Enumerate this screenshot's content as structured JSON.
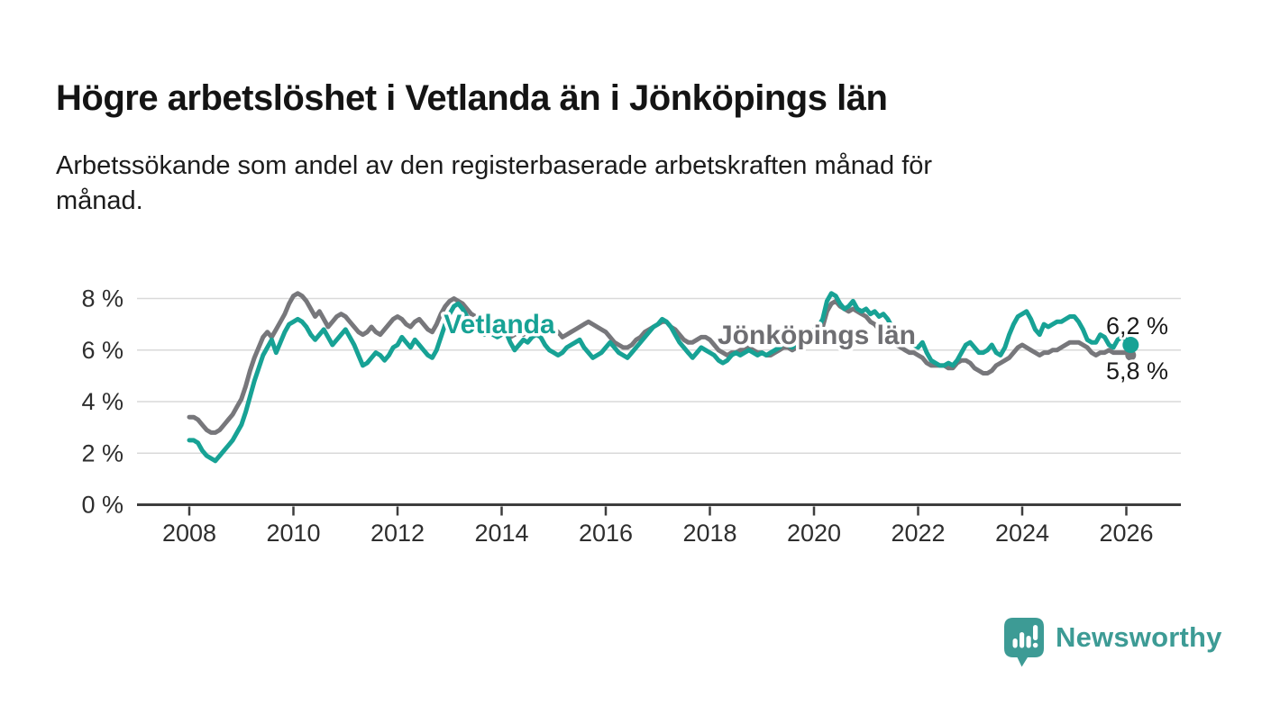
{
  "header": {
    "title": "Högre arbetslöshet i Vetlanda än i Jönköpings län",
    "subtitle_line1": "Arbetssökande som andel av den registerbaserade arbetskraften månad för",
    "subtitle_line2": "månad."
  },
  "chart_data": {
    "type": "line",
    "title": "Högre arbetslöshet i Vetlanda än i Jönköpings län",
    "unit": "%",
    "x_start": "2008-01",
    "x_end": "2026-02",
    "x_frequency": "monthly",
    "ylim": [
      0,
      8.8
    ],
    "grid": "horizontal",
    "legend_position": "inline-labels",
    "y_ticks": [
      {
        "value": 0,
        "label": "0 %"
      },
      {
        "value": 2,
        "label": "2 %"
      },
      {
        "value": 4,
        "label": "4 %"
      },
      {
        "value": 6,
        "label": "6 %"
      },
      {
        "value": 8,
        "label": "8 %"
      }
    ],
    "x_tick_years": [
      2008,
      2010,
      2012,
      2014,
      2016,
      2018,
      2020,
      2022,
      2024,
      2026
    ],
    "series": [
      {
        "name": "Vetlanda",
        "color": "#17a295",
        "label_color": "#17a295",
        "end_label": "6,2 %",
        "end_value": 6.2,
        "values": [
          2.5,
          2.5,
          2.4,
          2.1,
          1.9,
          1.8,
          1.7,
          1.9,
          2.1,
          2.3,
          2.5,
          2.8,
          3.1,
          3.6,
          4.2,
          4.8,
          5.3,
          5.8,
          6.1,
          6.4,
          5.9,
          6.3,
          6.7,
          7.0,
          7.1,
          7.2,
          7.1,
          6.9,
          6.6,
          6.4,
          6.6,
          6.8,
          6.5,
          6.2,
          6.4,
          6.6,
          6.8,
          6.5,
          6.2,
          5.8,
          5.4,
          5.5,
          5.7,
          5.9,
          5.8,
          5.6,
          5.8,
          6.1,
          6.2,
          6.5,
          6.3,
          6.1,
          6.4,
          6.2,
          6.0,
          5.8,
          5.7,
          6.0,
          6.5,
          7.0,
          7.4,
          7.7,
          7.8,
          7.6,
          7.3,
          7.1,
          6.9,
          6.7,
          6.6,
          6.8,
          6.6,
          6.5,
          6.6,
          6.7,
          6.3,
          6.0,
          6.2,
          6.4,
          6.3,
          6.5,
          6.6,
          6.5,
          6.2,
          6.0,
          5.9,
          5.8,
          5.9,
          6.1,
          6.2,
          6.3,
          6.4,
          6.1,
          5.9,
          5.7,
          5.8,
          5.9,
          6.1,
          6.3,
          6.1,
          5.9,
          5.8,
          5.7,
          5.9,
          6.1,
          6.3,
          6.5,
          6.7,
          6.9,
          7.0,
          7.2,
          7.1,
          6.9,
          6.6,
          6.3,
          6.1,
          5.9,
          5.7,
          5.9,
          6.1,
          6.0,
          5.9,
          5.8,
          5.6,
          5.5,
          5.6,
          5.8,
          5.9,
          5.8,
          5.9,
          6.0,
          5.9,
          5.8,
          5.9,
          5.8,
          5.9,
          6.0,
          6.1,
          6.3,
          6.2,
          6.1,
          6.3,
          6.5,
          6.4,
          6.6,
          6.8,
          6.9,
          7.2,
          7.9,
          8.2,
          8.1,
          7.8,
          7.6,
          7.7,
          7.9,
          7.6,
          7.5,
          7.6,
          7.4,
          7.5,
          7.3,
          7.4,
          7.2,
          6.9,
          6.6,
          6.5,
          6.6,
          6.4,
          6.2,
          6.1,
          6.3,
          5.9,
          5.6,
          5.5,
          5.4,
          5.4,
          5.5,
          5.4,
          5.6,
          5.9,
          6.2,
          6.3,
          6.1,
          5.9,
          5.9,
          6.0,
          6.2,
          5.9,
          5.8,
          6.1,
          6.6,
          7.0,
          7.3,
          7.4,
          7.5,
          7.2,
          6.8,
          6.6,
          7.0,
          6.9,
          7.0,
          7.1,
          7.1,
          7.2,
          7.3,
          7.3,
          7.1,
          6.8,
          6.4,
          6.3,
          6.3,
          6.6,
          6.5,
          6.2,
          6.1,
          6.4,
          6.5,
          6.4,
          6.2
        ]
      },
      {
        "name": "Jönköpings län",
        "color": "#77777b",
        "label_color": "#6e6e72",
        "end_label": "5,8 %",
        "end_value": 5.8,
        "values": [
          3.4,
          3.4,
          3.3,
          3.1,
          2.9,
          2.8,
          2.8,
          2.9,
          3.1,
          3.3,
          3.5,
          3.8,
          4.1,
          4.6,
          5.2,
          5.7,
          6.1,
          6.5,
          6.7,
          6.5,
          6.8,
          7.1,
          7.4,
          7.8,
          8.1,
          8.2,
          8.1,
          7.9,
          7.6,
          7.3,
          7.5,
          7.2,
          6.9,
          7.1,
          7.3,
          7.4,
          7.3,
          7.1,
          6.9,
          6.7,
          6.6,
          6.7,
          6.9,
          6.7,
          6.6,
          6.8,
          7.0,
          7.2,
          7.3,
          7.2,
          7.0,
          6.9,
          7.1,
          7.2,
          7.0,
          6.8,
          6.7,
          7.0,
          7.4,
          7.7,
          7.9,
          8.0,
          7.9,
          7.8,
          7.6,
          7.4,
          7.3,
          7.1,
          7.0,
          6.9,
          6.8,
          6.8,
          6.8,
          6.7,
          6.5,
          6.6,
          6.7,
          6.6,
          6.7,
          6.8,
          6.9,
          7.0,
          6.9,
          6.9,
          6.8,
          6.7,
          6.5,
          6.6,
          6.7,
          6.8,
          6.9,
          7.0,
          7.1,
          7.0,
          6.9,
          6.8,
          6.7,
          6.5,
          6.3,
          6.2,
          6.1,
          6.1,
          6.2,
          6.4,
          6.5,
          6.7,
          6.8,
          6.9,
          7.0,
          7.1,
          7.1,
          6.9,
          6.8,
          6.6,
          6.4,
          6.3,
          6.3,
          6.4,
          6.5,
          6.5,
          6.4,
          6.2,
          6.0,
          5.9,
          5.8,
          5.9,
          5.9,
          6.0,
          6.0,
          6.1,
          6.0,
          5.9,
          5.9,
          5.8,
          5.8,
          5.9,
          6.0,
          6.1,
          6.1,
          6.0,
          6.1,
          6.2,
          6.3,
          6.4,
          6.5,
          6.6,
          6.9,
          7.5,
          7.8,
          7.9,
          7.7,
          7.6,
          7.5,
          7.6,
          7.5,
          7.4,
          7.3,
          7.1,
          7.0,
          6.8,
          6.6,
          6.4,
          6.3,
          6.2,
          6.1,
          6.0,
          5.9,
          5.9,
          5.8,
          5.7,
          5.5,
          5.4,
          5.4,
          5.4,
          5.4,
          5.3,
          5.3,
          5.5,
          5.6,
          5.6,
          5.5,
          5.3,
          5.2,
          5.1,
          5.1,
          5.2,
          5.4,
          5.5,
          5.6,
          5.7,
          5.9,
          6.1,
          6.2,
          6.1,
          6.0,
          5.9,
          5.8,
          5.9,
          5.9,
          6.0,
          6.0,
          6.1,
          6.2,
          6.3,
          6.3,
          6.3,
          6.2,
          6.1,
          5.9,
          5.8,
          5.9,
          5.9,
          6.0,
          5.9,
          5.9,
          5.9,
          5.9,
          5.8
        ]
      }
    ]
  },
  "footer": {
    "brand": "Newsworthy",
    "brand_color": "#3d9b95"
  }
}
